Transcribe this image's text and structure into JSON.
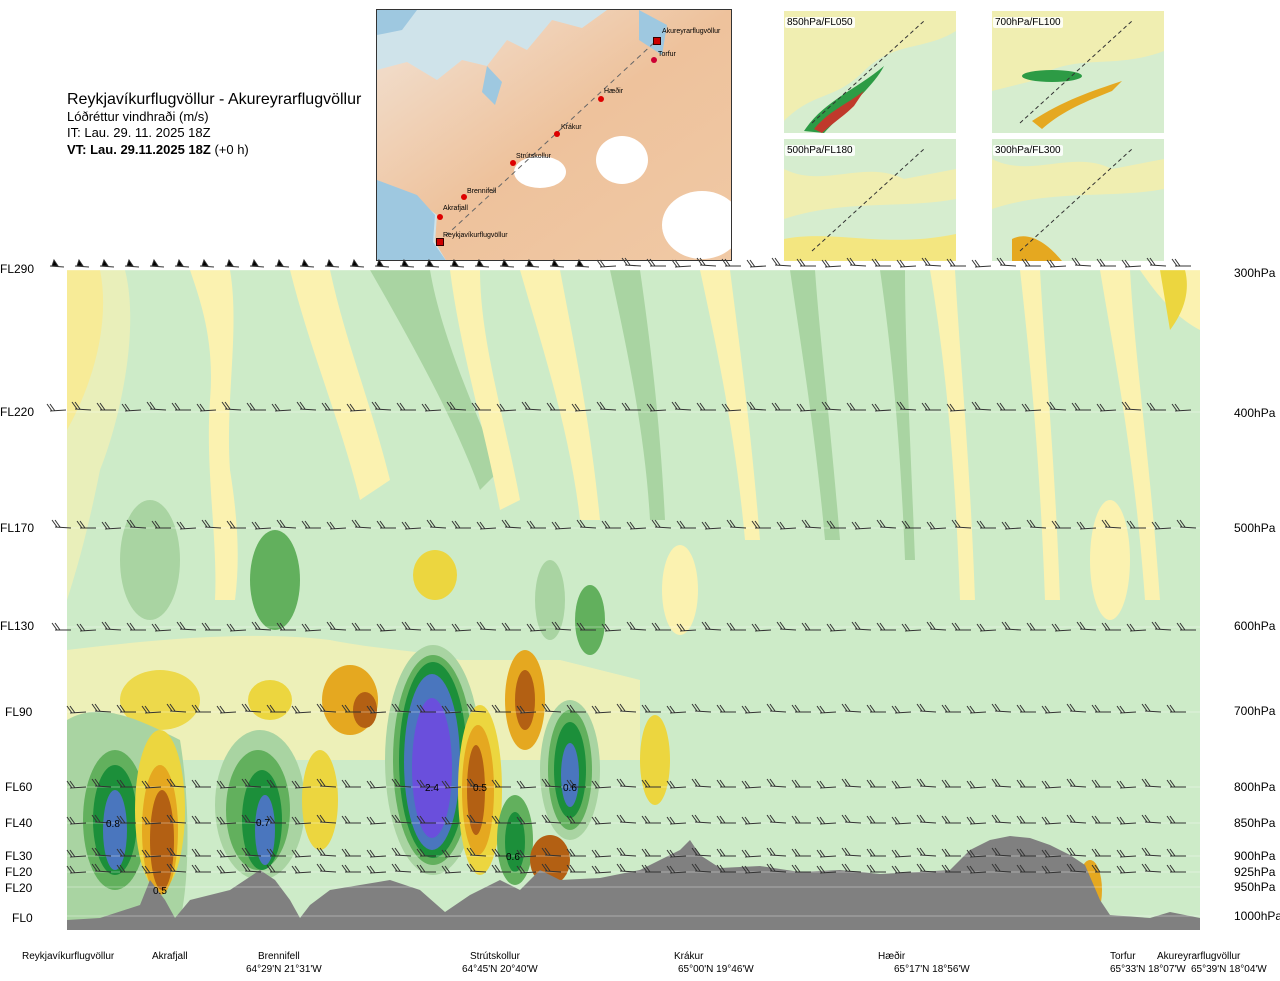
{
  "header": {
    "route": "Reykjavíkurflugvöllur - Akureyrarflugvöllur",
    "parameter": "Lóðréttur vindhraði (m/s)",
    "issue_time": "IT: Lau. 29. 11. 2025 18Z",
    "valid_time": "VT: Lau. 29.11.2025 18Z",
    "offset": "(+0 h)"
  },
  "map": {
    "waypoints": [
      {
        "name": "Akureyrarflugvöllur",
        "type": "airport"
      },
      {
        "name": "Torfur",
        "type": "point"
      },
      {
        "name": "Hæðir",
        "type": "point"
      },
      {
        "name": "Krákur",
        "type": "point"
      },
      {
        "name": "Strútskollur",
        "type": "point"
      },
      {
        "name": "Brennifell",
        "type": "point"
      },
      {
        "name": "Akrafjall",
        "type": "point"
      },
      {
        "name": "Reykjavíkurflugvöllur",
        "type": "airport"
      }
    ]
  },
  "thumbnails": [
    {
      "label": "850hPa/FL050"
    },
    {
      "label": "700hPa/FL100"
    },
    {
      "label": "500hPa/FL180"
    },
    {
      "label": "300hPa/FL300"
    }
  ],
  "chart_data": {
    "type": "heatmap",
    "title": "Lóðréttur vindhraði (m/s)",
    "flight_levels": [
      "FL290",
      "FL220",
      "FL170",
      "FL130",
      "FL90",
      "FL60",
      "FL40",
      "FL30",
      "FL20",
      "FL20",
      "FL0"
    ],
    "pressure_levels": [
      "300hPa",
      "400hPa",
      "500hPa",
      "600hPa",
      "700hPa",
      "800hPa",
      "850hPa",
      "900hPa",
      "925hPa",
      "950hPa",
      "1000hPa"
    ],
    "x_locations": [
      {
        "name": "Reykjavíkurflugvöllur",
        "coord": ""
      },
      {
        "name": "Akrafjall",
        "coord": ""
      },
      {
        "name": "Brennifell",
        "coord": "64°29'N 21°31'W"
      },
      {
        "name": "Strútskollur",
        "coord": "64°45'N 20°40'W"
      },
      {
        "name": "Krákur",
        "coord": "65°00'N 19°46'W"
      },
      {
        "name": "Hæðir",
        "coord": "65°17'N 18°56'W"
      },
      {
        "name": "Torfur",
        "coord": "65°33'N 18°07'W"
      },
      {
        "name": "Akureyrarflugvöllur",
        "coord": "65°39'N 18°04'W"
      }
    ],
    "annotations": [
      "0.8",
      "0.5",
      "0.7",
      "2.4",
      "0.5",
      "0.6",
      "0.6"
    ],
    "colors": {
      "background": "#cdebc8",
      "weak_up": "#fbf2b0",
      "up": "#ecd63f",
      "strong_up": "#e5a820",
      "very_strong_up": "#b36013",
      "weak_down": "#a9d4a2",
      "down": "#62b05d",
      "strong_down": "#1c8f3a",
      "very_strong_down": "#4a76be",
      "extreme_down": "#6a4fdc",
      "terrain": "#808080"
    }
  }
}
